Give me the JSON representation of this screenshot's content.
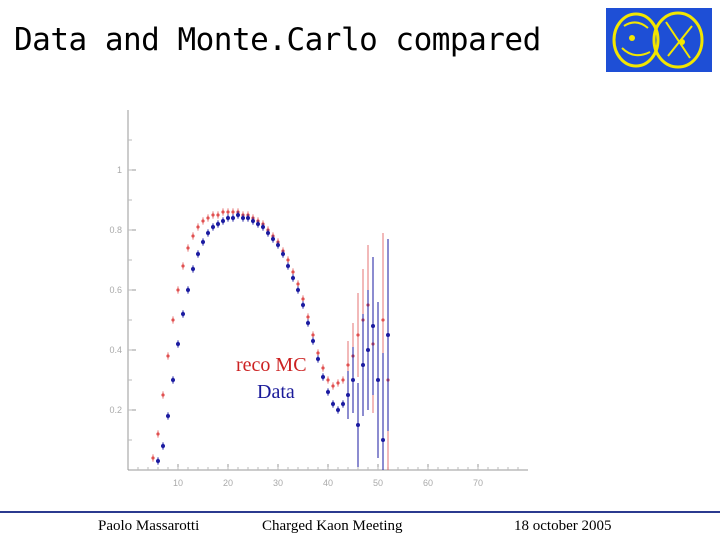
{
  "slide": {
    "title": "Data and Monte.Carlo compared",
    "footer": {
      "author": "Paolo Massarotti",
      "event": "Charged Kaon Meeting",
      "date": "18 october 2005"
    }
  },
  "colors": {
    "mc": "#e05050",
    "data": "#1a1aa0",
    "footer_line": "#2b3a8f",
    "logo_bg": "#1e4fd6",
    "logo_fg": "#f2e600"
  },
  "chart_data": {
    "type": "scatter",
    "xlim": [
      0,
      80
    ],
    "ylim": [
      0,
      1.2
    ],
    "x_ticks": [
      10,
      20,
      30,
      40,
      50,
      60,
      70
    ],
    "y_ticks": [
      0.2,
      0.4,
      0.6,
      0.8,
      1
    ],
    "grid": false,
    "legend": {
      "placement": "center"
    },
    "series": [
      {
        "name": "reco MC",
        "x": [
          5,
          6,
          7,
          8,
          9,
          10,
          11,
          12,
          13,
          14,
          15,
          16,
          17,
          18,
          19,
          20,
          21,
          22,
          23,
          24,
          25,
          26,
          27,
          28,
          29,
          30,
          31,
          32,
          33,
          34,
          35,
          36,
          37,
          38,
          39,
          40,
          41,
          42,
          43,
          44,
          45,
          46,
          47,
          48,
          49,
          50,
          51,
          52
        ],
        "y": [
          0.04,
          0.12,
          0.25,
          0.38,
          0.5,
          0.6,
          0.68,
          0.74,
          0.78,
          0.81,
          0.83,
          0.84,
          0.85,
          0.85,
          0.86,
          0.86,
          0.86,
          0.86,
          0.85,
          0.85,
          0.84,
          0.83,
          0.82,
          0.8,
          0.78,
          0.76,
          0.73,
          0.7,
          0.66,
          0.62,
          0.57,
          0.51,
          0.45,
          0.39,
          0.34,
          0.3,
          0.28,
          0.29,
          0.3,
          0.35,
          0.38,
          0.45,
          0.5,
          0.55,
          0.42,
          0.3,
          0.5,
          0.3
        ]
      },
      {
        "name": "Data",
        "x": [
          6,
          7,
          8,
          9,
          10,
          11,
          12,
          13,
          14,
          15,
          16,
          17,
          18,
          19,
          20,
          21,
          22,
          23,
          24,
          25,
          26,
          27,
          28,
          29,
          30,
          31,
          32,
          33,
          34,
          35,
          36,
          37,
          38,
          39,
          40,
          41,
          42,
          43,
          44,
          45,
          46,
          47,
          48,
          49,
          50,
          51,
          52
        ],
        "y": [
          0.03,
          0.08,
          0.18,
          0.3,
          0.42,
          0.52,
          0.6,
          0.67,
          0.72,
          0.76,
          0.79,
          0.81,
          0.82,
          0.83,
          0.84,
          0.84,
          0.85,
          0.84,
          0.84,
          0.83,
          0.82,
          0.81,
          0.79,
          0.77,
          0.75,
          0.72,
          0.68,
          0.64,
          0.6,
          0.55,
          0.49,
          0.43,
          0.37,
          0.31,
          0.26,
          0.22,
          0.2,
          0.22,
          0.25,
          0.3,
          0.15,
          0.35,
          0.4,
          0.48,
          0.3,
          0.1,
          0.45
        ]
      }
    ]
  }
}
